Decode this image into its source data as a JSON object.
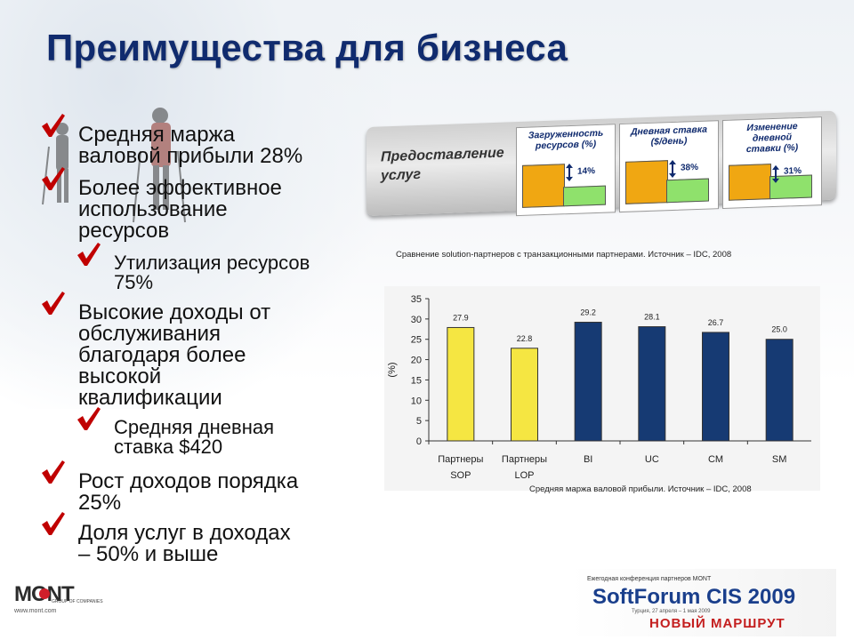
{
  "title": "Преимущества для бизнеса",
  "bullets": [
    {
      "text": "Средняя маржа\nваловой прибыли 28%"
    },
    {
      "text": "Более эффективное\nиспользование\nресурсов"
    },
    {
      "text": "Утилизация ресурсов\n75%"
    },
    {
      "text": "Высокие доходы от\nобслуживания\nблагодаря более\nвысокой\nквалификации"
    },
    {
      "text": "Средняя дневная\nставка $420"
    },
    {
      "text": "Рост доходов порядка\n25%"
    },
    {
      "text": "Доля услуг в доходах\n– 50% и выше"
    }
  ],
  "banner": {
    "label": "Предоставление\nуслуг",
    "panels": [
      {
        "title": "Загруженность\nресурсов (%)",
        "value": "14%"
      },
      {
        "title": "Дневная ставка\n($/день)",
        "value": "38%"
      },
      {
        "title": "Изменение\nдневной\nставки (%)",
        "value": "31%"
      }
    ]
  },
  "banner_caption": "Сравнение solution-партнеров с транзакционными партнерами. Источник – IDC, 2008",
  "chart_caption": "Средняя маржа валовой прибыли. Источник – IDC, 2008",
  "colors": {
    "title": "#102b6e",
    "sop_bar": "#f5e642",
    "lop_bar": "#f5e642",
    "other_bars": "#163a73",
    "check": "#c00000"
  },
  "footer": {
    "logo": "MONT",
    "logo_sub": "GROUP OF COMPANIES",
    "url": "www.mont.com",
    "event_small": "Ежегодная конференция партнеров MONT",
    "event_name": "SoftForum CIS 2009",
    "event_dates": "Турция, 27 апреля – 1 мая 2009",
    "event_tagline": "НОВЫЙ МАРШРУТ"
  },
  "chart_data": {
    "type": "bar",
    "categories": [
      "Партнеры\nSOP",
      "Партнеры\nLOP",
      "BI",
      "UC",
      "CM",
      "SM"
    ],
    "values": [
      27.9,
      22.8,
      29.2,
      28.1,
      26.7,
      25.0
    ],
    "value_labels": [
      "27.9",
      "22.8",
      "29.2",
      "28.1",
      "26.7",
      "25.0"
    ],
    "ylabel": "(%)",
    "ylim": [
      0,
      35
    ],
    "yticks": [
      0,
      5,
      10,
      15,
      20,
      25,
      30,
      35
    ],
    "bar_colors": [
      "#f5e642",
      "#f5e642",
      "#163a73",
      "#163a73",
      "#163a73",
      "#163a73"
    ],
    "grid": false
  }
}
